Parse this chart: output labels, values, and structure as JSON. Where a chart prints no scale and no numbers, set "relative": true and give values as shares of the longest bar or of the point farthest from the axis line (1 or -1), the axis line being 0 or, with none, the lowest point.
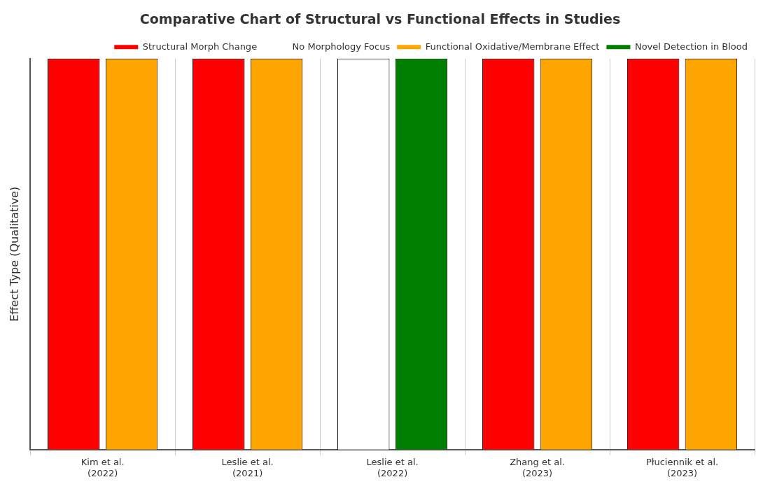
{
  "chart_data": {
    "type": "bar",
    "title": "Comparative Chart of Structural vs Functional Effects in Studies",
    "ylabel": "Effect Type (Qualitative)",
    "relative": true,
    "categories": [
      "Kim et al.\n(2022)",
      "Leslie et al.\n(2021)",
      "Leslie et al.\n(2022)",
      "Zhang et al.\n(2023)",
      "Płuciennik et al.\n(2023)"
    ],
    "series": [
      {
        "name": "Structural Morph Change",
        "color": "#ff0000",
        "values": [
          1,
          1,
          null,
          1,
          1
        ]
      },
      {
        "name": "No Morphology Focus",
        "color": "#ffffff",
        "values": [
          null,
          null,
          1,
          null,
          null
        ]
      },
      {
        "name": "Functional Oxidative/Membrane Effect",
        "color": "#ffa500",
        "values": [
          1,
          1,
          null,
          1,
          1
        ]
      },
      {
        "name": "Novel Detection in Blood",
        "color": "#008000",
        "values": [
          null,
          null,
          1,
          null,
          null
        ]
      }
    ],
    "grid": "x",
    "legend": "top right"
  }
}
